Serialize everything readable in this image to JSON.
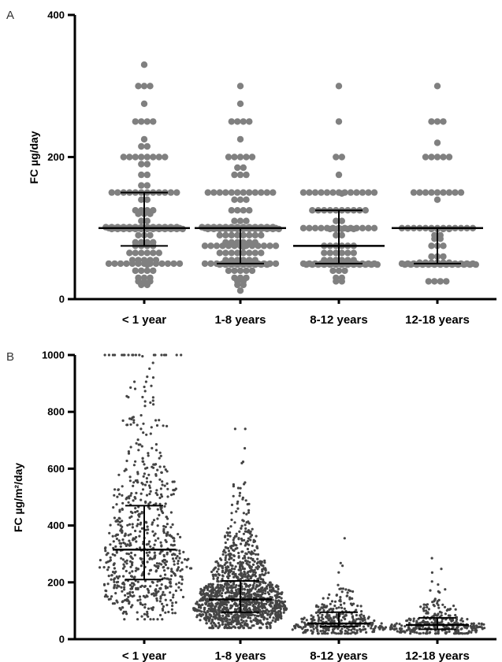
{
  "chart_data": [
    {
      "panel_label": "A",
      "type": "scatter",
      "subtype": "dot-plot with median and interquartile range",
      "ylabel": "FC µg/day",
      "ylim": [
        0,
        400
      ],
      "yticks": [
        0,
        200,
        400
      ],
      "categories": [
        "< 1 year",
        "1-8 years",
        "8-12 years",
        "12-18 years"
      ],
      "point_color": "#808080",
      "series": [
        {
          "category": "< 1 year",
          "median": 100,
          "q1": 75,
          "q3": 150,
          "levels": [
            [
              330,
              1
            ],
            [
              300,
              3
            ],
            [
              275,
              1
            ],
            [
              250,
              4
            ],
            [
              225,
              1
            ],
            [
              215,
              2
            ],
            [
              200,
              8
            ],
            [
              190,
              2
            ],
            [
              175,
              2
            ],
            [
              160,
              2
            ],
            [
              150,
              12
            ],
            [
              140,
              2
            ],
            [
              125,
              4
            ],
            [
              120,
              3
            ],
            [
              110,
              2
            ],
            [
              100,
              40
            ],
            [
              90,
              3
            ],
            [
              80,
              4
            ],
            [
              75,
              4
            ],
            [
              65,
              6
            ],
            [
              55,
              5
            ],
            [
              50,
              14
            ],
            [
              40,
              4
            ],
            [
              30,
              3
            ],
            [
              25,
              3
            ],
            [
              20,
              2
            ]
          ]
        },
        {
          "category": "1-8 years",
          "median": 100,
          "q1": 50,
          "q3": 100,
          "levels": [
            [
              300,
              1
            ],
            [
              275,
              1
            ],
            [
              250,
              4
            ],
            [
              225,
              1
            ],
            [
              200,
              5
            ],
            [
              185,
              2
            ],
            [
              175,
              3
            ],
            [
              150,
              12
            ],
            [
              140,
              3
            ],
            [
              125,
              4
            ],
            [
              110,
              3
            ],
            [
              100,
              40
            ],
            [
              90,
              8
            ],
            [
              80,
              6
            ],
            [
              75,
              14
            ],
            [
              65,
              8
            ],
            [
              55,
              6
            ],
            [
              50,
              22
            ],
            [
              40,
              5
            ],
            [
              30,
              3
            ],
            [
              25,
              2
            ],
            [
              20,
              2
            ],
            [
              12,
              1
            ]
          ]
        },
        {
          "category": "8-12 years",
          "median": 75,
          "q1": 50,
          "q3": 125,
          "levels": [
            [
              300,
              1
            ],
            [
              250,
              1
            ],
            [
              200,
              2
            ],
            [
              175,
              1
            ],
            [
              150,
              14
            ],
            [
              125,
              10
            ],
            [
              110,
              2
            ],
            [
              100,
              18
            ],
            [
              90,
              2
            ],
            [
              75,
              6
            ],
            [
              65,
              6
            ],
            [
              55,
              6
            ],
            [
              50,
              30
            ],
            [
              40,
              3
            ],
            [
              30,
              2
            ],
            [
              25,
              2
            ]
          ]
        },
        {
          "category": "12-18 years",
          "median": 100,
          "q1": 50,
          "q3": 100,
          "levels": [
            [
              300,
              1
            ],
            [
              250,
              3
            ],
            [
              220,
              1
            ],
            [
              200,
              5
            ],
            [
              150,
              9
            ],
            [
              140,
              1
            ],
            [
              100,
              17
            ],
            [
              90,
              2
            ],
            [
              85,
              2
            ],
            [
              75,
              3
            ],
            [
              60,
              3
            ],
            [
              50,
              32
            ],
            [
              25,
              4
            ]
          ]
        }
      ]
    },
    {
      "panel_label": "B",
      "type": "scatter",
      "subtype": "dot-plot with median and interquartile range",
      "ylabel": "FC µg/m²/day",
      "ylim": [
        0,
        1000
      ],
      "yticks": [
        0,
        200,
        400,
        600,
        800,
        1000
      ],
      "categories": [
        "< 1 year",
        "1-8 years",
        "8-12 years",
        "12-18 years"
      ],
      "point_color": "#444444",
      "series": [
        {
          "category": "< 1 year",
          "median": 315,
          "q1": 210,
          "q3": 470,
          "point_count": 700,
          "min": 70,
          "max": 1000
        },
        {
          "category": "1-8 years",
          "median": 140,
          "q1": 95,
          "q3": 205,
          "point_count": 1300,
          "min": 40,
          "max": 740
        },
        {
          "category": "8-12 years",
          "median": 55,
          "q1": 45,
          "q3": 95,
          "point_count": 350,
          "min": 20,
          "max": 355
        },
        {
          "category": "12-18 years",
          "median": 50,
          "q1": 35,
          "q3": 75,
          "point_count": 300,
          "min": 20,
          "max": 285
        }
      ]
    }
  ]
}
